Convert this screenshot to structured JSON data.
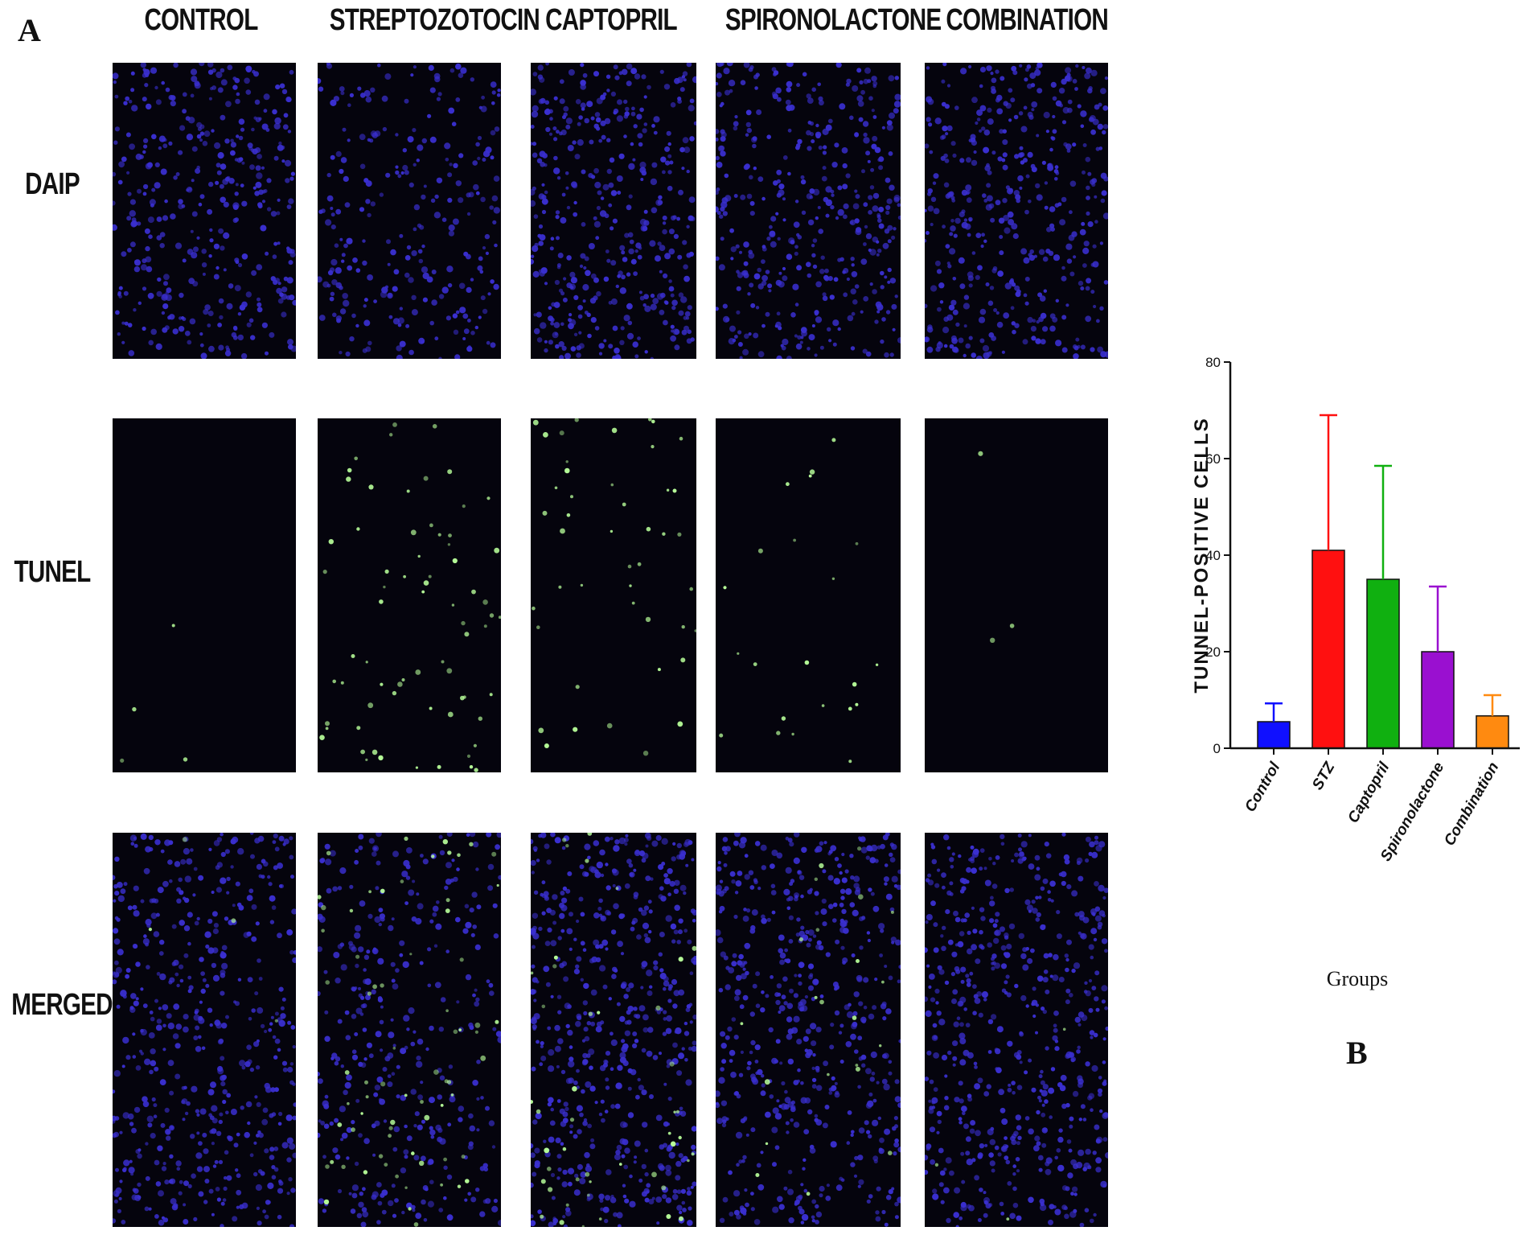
{
  "figure": {
    "panel_a_label": "A",
    "panel_b_label": "B"
  },
  "columns": [
    "CONTROL",
    "STREPTOZOTOCIN",
    "CAPTOPRIL",
    "SPIRONOLACTONE",
    "COMBINATION"
  ],
  "rows": [
    "DAIP",
    "TUNEL",
    "MERGED"
  ],
  "micrographs": {
    "dapi_color": "#3a2fd0",
    "tunel_color": "#b8ff9a",
    "background": "#05040d",
    "blue_density": [
      380,
      260,
      400,
      400,
      420
    ],
    "green_counts": [
      4,
      70,
      45,
      22,
      3
    ]
  },
  "chart_data": {
    "type": "bar",
    "categories": [
      "Control",
      "STZ",
      "Captopril",
      "Spironolactone",
      "Combination"
    ],
    "values": [
      5.5,
      41,
      35,
      20,
      6.7
    ],
    "errors": [
      3.8,
      28,
      23.5,
      13.5,
      4.3
    ],
    "colors": [
      "#1010ff",
      "#ff1010",
      "#10b010",
      "#9a10d0",
      "#ff8a10"
    ],
    "ylabel": "TUNNEL-POSITIVE CELLS",
    "xlabel": "Groups",
    "ylim": [
      0,
      80
    ],
    "yticks": [
      "0",
      "20",
      "40",
      "60",
      "80"
    ],
    "grid": false
  }
}
